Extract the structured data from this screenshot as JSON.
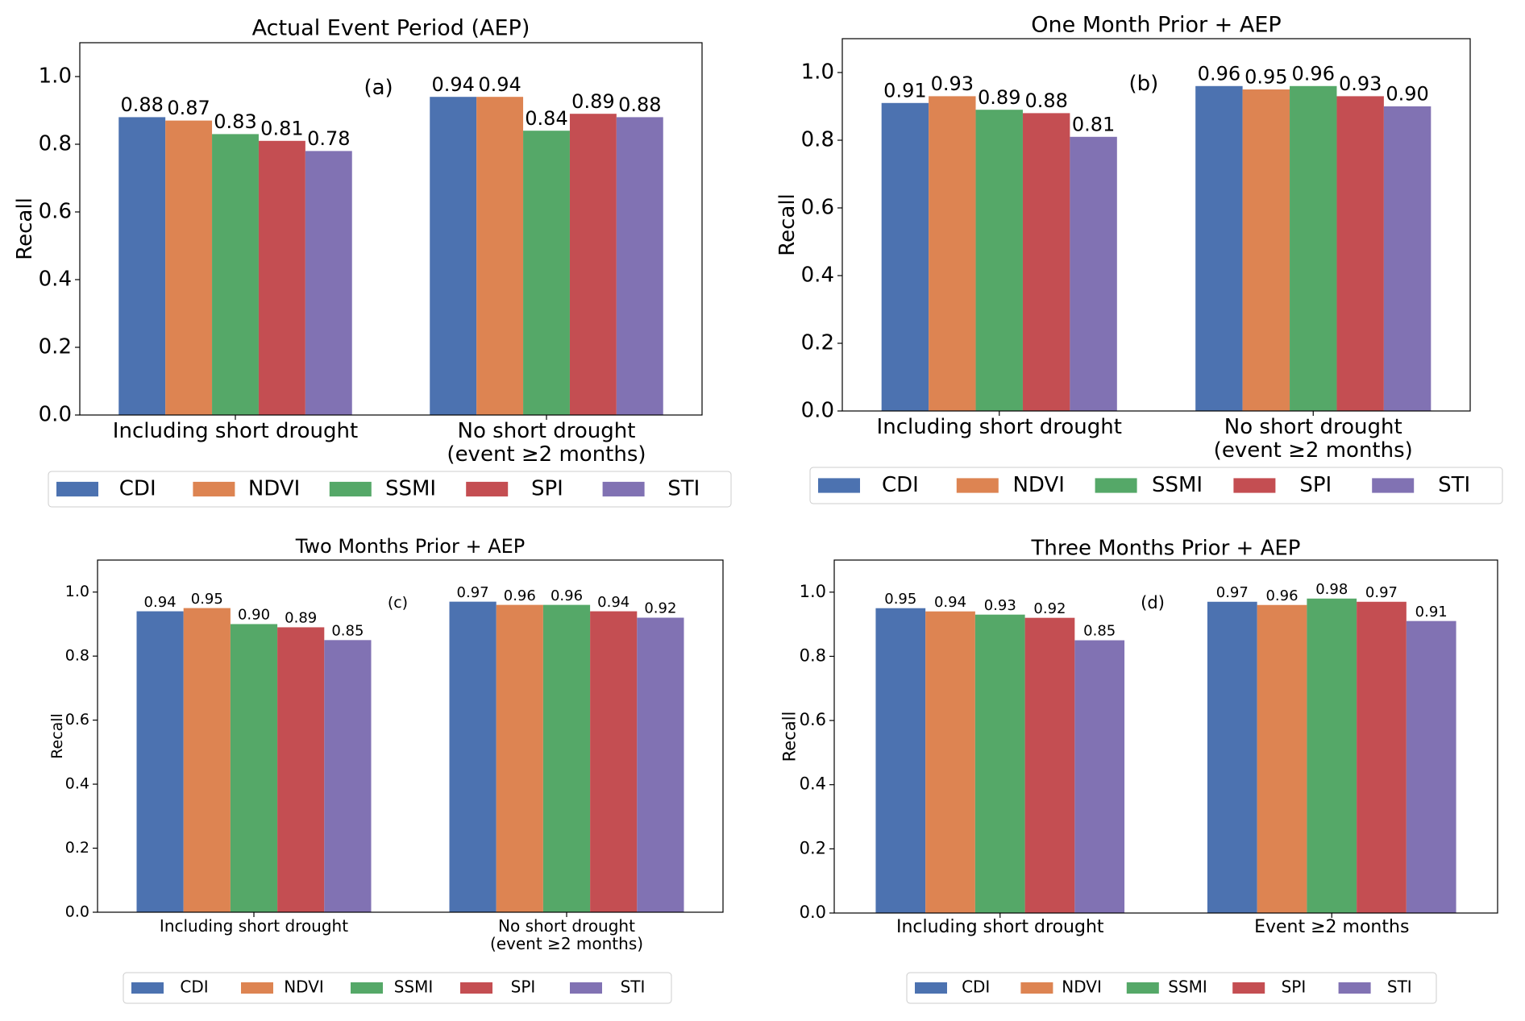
{
  "chart_data": [
    {
      "type": "bar",
      "title": "Actual Event Period (AEP)",
      "ylabel": "Recall",
      "annotation": "(a)",
      "categories": [
        "Including short drought",
        "No short drought\n(event ≥2 months)"
      ],
      "series": [
        {
          "name": "CDI",
          "color": "#4c72b0",
          "values": [
            0.88,
            0.94
          ],
          "value_labels": [
            "0.88",
            "0.94"
          ]
        },
        {
          "name": "NDVI",
          "color": "#dd8452",
          "values": [
            0.87,
            0.94
          ],
          "value_labels": [
            "0.87",
            "0.94"
          ]
        },
        {
          "name": "SSMI",
          "color": "#55a868",
          "values": [
            0.83,
            0.84
          ],
          "value_labels": [
            "0.83",
            "0.84"
          ]
        },
        {
          "name": "SPI",
          "color": "#c44e52",
          "values": [
            0.81,
            0.89
          ],
          "value_labels": [
            "0.81",
            "0.89"
          ]
        },
        {
          "name": "STI",
          "color": "#8172b3",
          "values": [
            0.78,
            0.88
          ],
          "value_labels": [
            "0.78",
            "0.88"
          ]
        }
      ],
      "ylim": [
        0,
        1.1
      ],
      "yticks": [
        {
          "value": 0,
          "label": "0.0"
        },
        0.2,
        0.4,
        0.6,
        0.8,
        {
          "value": 1,
          "label": "1.0"
        }
      ],
      "legend": "bottom"
    },
    {
      "type": "bar",
      "title": "One Month Prior + AEP",
      "ylabel": "Recall",
      "annotation": "(b)",
      "categories": [
        "Including short drought",
        "No short drought\n(event ≥2 months)"
      ],
      "series": [
        {
          "name": "CDI",
          "color": "#4c72b0",
          "values": [
            0.91,
            0.96
          ],
          "value_labels": [
            "0.91",
            "0.96"
          ]
        },
        {
          "name": "NDVI",
          "color": "#dd8452",
          "values": [
            0.93,
            0.95
          ],
          "value_labels": [
            "0.93",
            "0.95"
          ]
        },
        {
          "name": "SSMI",
          "color": "#55a868",
          "values": [
            0.89,
            0.96
          ],
          "value_labels": [
            "0.89",
            "0.96"
          ]
        },
        {
          "name": "SPI",
          "color": "#c44e52",
          "values": [
            0.88,
            0.93
          ],
          "value_labels": [
            "0.88",
            "0.93"
          ]
        },
        {
          "name": "STI",
          "color": "#8172b3",
          "values": [
            0.81,
            0.9
          ],
          "value_labels": [
            "0.81",
            "0.90"
          ]
        }
      ],
      "ylim": [
        0,
        1.1
      ],
      "yticks": [
        {
          "value": 0,
          "label": "0.0"
        },
        0.2,
        0.4,
        0.6,
        0.8,
        {
          "value": 1,
          "label": "1.0"
        }
      ],
      "legend": "bottom"
    },
    {
      "type": "bar",
      "title": "Two Months Prior + AEP",
      "ylabel": "Recall",
      "annotation": "(c)",
      "categories": [
        "Including short drought",
        "No short drought\n(event ≥2 months)"
      ],
      "series": [
        {
          "name": "CDI",
          "color": "#4c72b0",
          "values": [
            0.94,
            0.97
          ],
          "value_labels": [
            "0.94",
            "0.97"
          ]
        },
        {
          "name": "NDVI",
          "color": "#dd8452",
          "values": [
            0.95,
            0.96
          ],
          "value_labels": [
            "0.95",
            "0.96"
          ]
        },
        {
          "name": "SSMI",
          "color": "#55a868",
          "values": [
            0.9,
            0.96
          ],
          "value_labels": [
            "0.90",
            "0.96"
          ]
        },
        {
          "name": "SPI",
          "color": "#c44e52",
          "values": [
            0.89,
            0.94
          ],
          "value_labels": [
            "0.89",
            "0.94"
          ]
        },
        {
          "name": "STI",
          "color": "#8172b3",
          "values": [
            0.85,
            0.92
          ],
          "value_labels": [
            "0.85",
            "0.92"
          ]
        }
      ],
      "ylim": [
        0,
        1.1
      ],
      "yticks": [
        {
          "value": 0,
          "label": "0.0"
        },
        0.2,
        0.4,
        0.6,
        0.8,
        {
          "value": 1,
          "label": "1.0"
        }
      ],
      "legend": "bottom"
    },
    {
      "type": "bar",
      "title": "Three Months Prior + AEP",
      "ylabel": "Recall",
      "annotation": "(d)",
      "categories": [
        "Including short drought",
        "Event ≥2 months"
      ],
      "series": [
        {
          "name": "CDI",
          "color": "#4c72b0",
          "values": [
            0.95,
            0.97
          ],
          "value_labels": [
            "0.95",
            "0.97"
          ]
        },
        {
          "name": "NDVI",
          "color": "#dd8452",
          "values": [
            0.94,
            0.96
          ],
          "value_labels": [
            "0.94",
            "0.96"
          ]
        },
        {
          "name": "SSMI",
          "color": "#55a868",
          "values": [
            0.93,
            0.98
          ],
          "value_labels": [
            "0.93",
            "0.98"
          ]
        },
        {
          "name": "SPI",
          "color": "#c44e52",
          "values": [
            0.92,
            0.97
          ],
          "value_labels": [
            "0.92",
            "0.97"
          ]
        },
        {
          "name": "STI",
          "color": "#8172b3",
          "values": [
            0.85,
            0.91
          ],
          "value_labels": [
            "0.85",
            "0.91"
          ]
        }
      ],
      "ylim": [
        0,
        1.1
      ],
      "yticks": [
        {
          "value": 0,
          "label": "0.0"
        },
        0.2,
        0.4,
        0.6,
        0.8,
        {
          "value": 1,
          "label": "1.0"
        }
      ],
      "legend": "bottom"
    }
  ]
}
